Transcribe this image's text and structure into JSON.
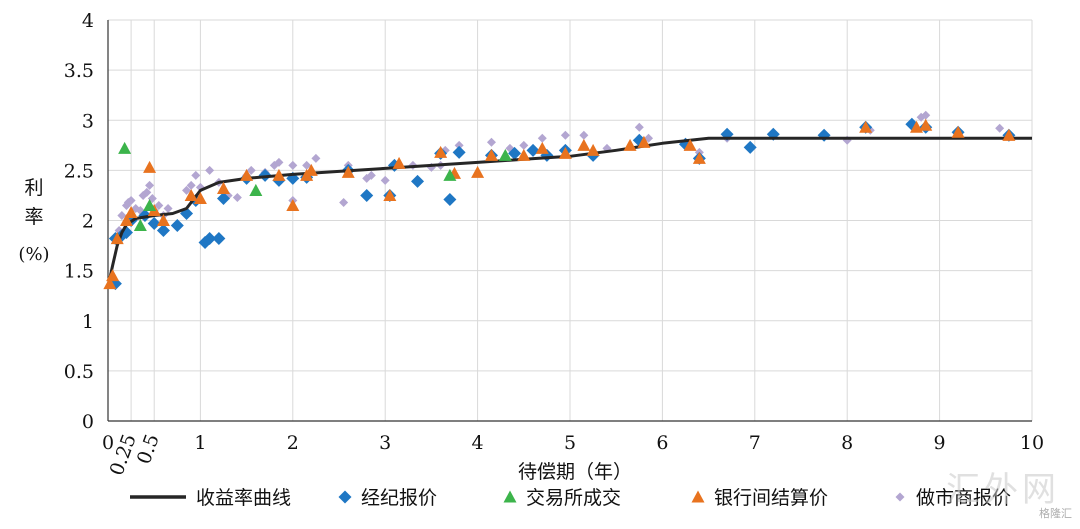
{
  "chart_data": {
    "type": "scatter",
    "title": "",
    "xlabel": "待偿期（年）",
    "ylabel": [
      "利",
      "率",
      "(%)"
    ],
    "xlim": [
      0,
      10
    ],
    "ylim": [
      0,
      4
    ],
    "x_ticks": [
      0,
      1,
      2,
      3,
      4,
      5,
      6,
      7,
      8,
      9,
      10
    ],
    "x_ticks_rotated": [
      0.25,
      0.5
    ],
    "y_ticks": [
      0,
      0.5,
      1,
      1.5,
      2,
      2.5,
      3,
      3.5,
      4
    ],
    "grid": true,
    "legend_position": "bottom",
    "series": [
      {
        "name": "收益率曲线",
        "kind": "line",
        "color": "#262626",
        "points": [
          [
            0.02,
            1.42
          ],
          [
            0.05,
            1.55
          ],
          [
            0.1,
            1.75
          ],
          [
            0.15,
            1.88
          ],
          [
            0.2,
            1.96
          ],
          [
            0.3,
            2.02
          ],
          [
            0.5,
            2.05
          ],
          [
            0.7,
            2.07
          ],
          [
            0.85,
            2.12
          ],
          [
            1.0,
            2.3
          ],
          [
            1.2,
            2.38
          ],
          [
            1.5,
            2.42
          ],
          [
            2.0,
            2.46
          ],
          [
            2.5,
            2.49
          ],
          [
            3.0,
            2.52
          ],
          [
            3.5,
            2.55
          ],
          [
            4.0,
            2.58
          ],
          [
            4.5,
            2.61
          ],
          [
            5.0,
            2.64
          ],
          [
            5.5,
            2.7
          ],
          [
            6.0,
            2.77
          ],
          [
            6.5,
            2.82
          ],
          [
            7.0,
            2.82
          ],
          [
            8.0,
            2.82
          ],
          [
            9.0,
            2.82
          ],
          [
            10.0,
            2.82
          ]
        ]
      },
      {
        "name": "经纪报价",
        "kind": "diamond",
        "color": "#1f77c4",
        "points": [
          [
            0.08,
            1.37
          ],
          [
            0.08,
            1.82
          ],
          [
            0.15,
            1.85
          ],
          [
            0.2,
            1.88
          ],
          [
            0.25,
            2.0
          ],
          [
            0.4,
            2.05
          ],
          [
            0.5,
            1.97
          ],
          [
            0.6,
            1.9
          ],
          [
            0.75,
            1.95
          ],
          [
            0.85,
            2.07
          ],
          [
            0.95,
            2.2
          ],
          [
            1.05,
            1.78
          ],
          [
            1.1,
            1.82
          ],
          [
            1.2,
            1.82
          ],
          [
            1.25,
            2.22
          ],
          [
            1.5,
            2.42
          ],
          [
            1.7,
            2.45
          ],
          [
            1.85,
            2.4
          ],
          [
            2.0,
            2.42
          ],
          [
            2.15,
            2.43
          ],
          [
            2.6,
            2.5
          ],
          [
            2.8,
            2.25
          ],
          [
            3.05,
            2.25
          ],
          [
            3.1,
            2.55
          ],
          [
            3.35,
            2.39
          ],
          [
            3.6,
            2.67
          ],
          [
            3.7,
            2.21
          ],
          [
            3.8,
            2.68
          ],
          [
            4.15,
            2.65
          ],
          [
            4.4,
            2.67
          ],
          [
            4.6,
            2.7
          ],
          [
            4.75,
            2.65
          ],
          [
            4.95,
            2.7
          ],
          [
            5.25,
            2.65
          ],
          [
            5.75,
            2.8
          ],
          [
            6.25,
            2.76
          ],
          [
            6.4,
            2.62
          ],
          [
            6.7,
            2.86
          ],
          [
            6.95,
            2.73
          ],
          [
            7.2,
            2.86
          ],
          [
            7.75,
            2.85
          ],
          [
            8.2,
            2.93
          ],
          [
            8.7,
            2.96
          ],
          [
            8.85,
            2.93
          ],
          [
            9.2,
            2.88
          ],
          [
            9.75,
            2.85
          ]
        ]
      },
      {
        "name": "交易所成交",
        "kind": "triangle",
        "color": "#3cb44b",
        "points": [
          [
            0.18,
            2.72
          ],
          [
            0.35,
            1.95
          ],
          [
            0.45,
            2.15
          ],
          [
            1.6,
            2.3
          ],
          [
            3.7,
            2.45
          ],
          [
            4.3,
            2.65
          ]
        ]
      },
      {
        "name": "银行间结算价",
        "kind": "triangle",
        "color": "#e8731f",
        "points": [
          [
            0.02,
            1.37
          ],
          [
            0.05,
            1.45
          ],
          [
            0.1,
            1.82
          ],
          [
            0.2,
            2.0
          ],
          [
            0.25,
            2.08
          ],
          [
            0.45,
            2.53
          ],
          [
            0.5,
            2.1
          ],
          [
            0.6,
            2.0
          ],
          [
            0.9,
            2.25
          ],
          [
            1.0,
            2.22
          ],
          [
            1.25,
            2.32
          ],
          [
            1.5,
            2.45
          ],
          [
            1.85,
            2.45
          ],
          [
            2.0,
            2.15
          ],
          [
            2.15,
            2.45
          ],
          [
            2.2,
            2.5
          ],
          [
            2.6,
            2.48
          ],
          [
            3.05,
            2.25
          ],
          [
            3.15,
            2.57
          ],
          [
            3.6,
            2.68
          ],
          [
            3.75,
            2.47
          ],
          [
            4.0,
            2.48
          ],
          [
            4.15,
            2.65
          ],
          [
            4.5,
            2.65
          ],
          [
            4.7,
            2.72
          ],
          [
            4.95,
            2.67
          ],
          [
            5.15,
            2.75
          ],
          [
            5.25,
            2.7
          ],
          [
            5.65,
            2.75
          ],
          [
            5.8,
            2.78
          ],
          [
            6.3,
            2.75
          ],
          [
            6.4,
            2.62
          ],
          [
            8.2,
            2.93
          ],
          [
            8.75,
            2.93
          ],
          [
            8.85,
            2.95
          ],
          [
            9.2,
            2.88
          ],
          [
            9.75,
            2.85
          ]
        ]
      },
      {
        "name": "做市商报价",
        "kind": "diamond-small",
        "color": "#b3a6d1",
        "points": [
          [
            0.12,
            1.9
          ],
          [
            0.15,
            2.05
          ],
          [
            0.2,
            2.15
          ],
          [
            0.22,
            2.18
          ],
          [
            0.25,
            2.2
          ],
          [
            0.3,
            2.12
          ],
          [
            0.35,
            2.1
          ],
          [
            0.38,
            2.25
          ],
          [
            0.42,
            2.28
          ],
          [
            0.45,
            2.35
          ],
          [
            0.48,
            2.22
          ],
          [
            0.5,
            2.1
          ],
          [
            0.55,
            2.15
          ],
          [
            0.6,
            2.05
          ],
          [
            0.65,
            2.12
          ],
          [
            0.85,
            2.3
          ],
          [
            0.9,
            2.35
          ],
          [
            0.95,
            2.45
          ],
          [
            1.0,
            2.33
          ],
          [
            1.1,
            2.5
          ],
          [
            1.2,
            2.38
          ],
          [
            1.3,
            2.25
          ],
          [
            1.4,
            2.23
          ],
          [
            1.5,
            2.45
          ],
          [
            1.55,
            2.5
          ],
          [
            1.7,
            2.48
          ],
          [
            1.8,
            2.55
          ],
          [
            1.85,
            2.58
          ],
          [
            2.0,
            2.55
          ],
          [
            2.0,
            2.2
          ],
          [
            2.15,
            2.55
          ],
          [
            2.25,
            2.62
          ],
          [
            2.55,
            2.18
          ],
          [
            2.6,
            2.55
          ],
          [
            2.8,
            2.42
          ],
          [
            2.85,
            2.45
          ],
          [
            3.0,
            2.4
          ],
          [
            3.3,
            2.55
          ],
          [
            3.5,
            2.53
          ],
          [
            3.6,
            2.55
          ],
          [
            3.65,
            2.7
          ],
          [
            3.8,
            2.75
          ],
          [
            4.15,
            2.78
          ],
          [
            4.35,
            2.72
          ],
          [
            4.5,
            2.75
          ],
          [
            4.7,
            2.82
          ],
          [
            4.95,
            2.85
          ],
          [
            5.15,
            2.85
          ],
          [
            5.4,
            2.72
          ],
          [
            5.75,
            2.93
          ],
          [
            5.85,
            2.82
          ],
          [
            6.25,
            2.78
          ],
          [
            6.4,
            2.68
          ],
          [
            6.7,
            2.82
          ],
          [
            7.2,
            2.85
          ],
          [
            7.75,
            2.84
          ],
          [
            8.0,
            2.8
          ],
          [
            8.25,
            2.9
          ],
          [
            8.8,
            3.03
          ],
          [
            8.85,
            3.05
          ],
          [
            9.65,
            2.92
          ]
        ]
      }
    ]
  },
  "watermark": {
    "main": "汇外网",
    "sub": "格隆汇"
  }
}
